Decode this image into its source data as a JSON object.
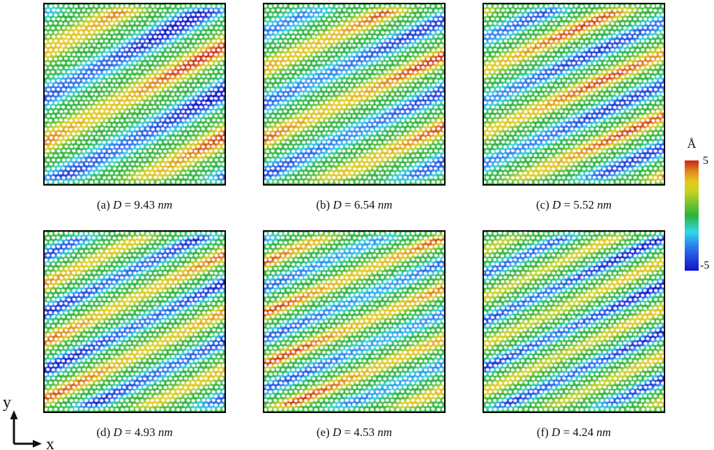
{
  "figure": {
    "colorbar": {
      "unit": "Å",
      "max_label": "5",
      "min_label": "-5",
      "stops": [
        {
          "v": -1.0,
          "c": "#1212c8"
        },
        {
          "v": -0.55,
          "c": "#2e7df0"
        },
        {
          "v": -0.3,
          "c": "#2fd8e8"
        },
        {
          "v": 0.0,
          "c": "#2cb43c"
        },
        {
          "v": 0.45,
          "c": "#c8d222"
        },
        {
          "v": 0.62,
          "c": "#e6c81e"
        },
        {
          "v": 0.8,
          "c": "#e08a1e"
        },
        {
          "v": 1.0,
          "c": "#cc2212"
        }
      ]
    },
    "axes_indicator": {
      "x": "x",
      "y": "y"
    },
    "panels": [
      {
        "label": "(a)",
        "symbol": "D",
        "eq": "=",
        "value": "9.43",
        "unit": "nm",
        "angle": 28,
        "period": 114,
        "phase": 0.27,
        "ampP": 5.0,
        "ampN": 5.0,
        "seed": 11
      },
      {
        "label": "(b)",
        "symbol": "D",
        "eq": "=",
        "value": "6.54",
        "unit": "nm",
        "angle": 25,
        "period": 92,
        "phase": 0.65,
        "ampP": 5.0,
        "ampN": 4.2,
        "seed": 23
      },
      {
        "label": "(c)",
        "symbol": "D",
        "eq": "=",
        "value": "5.52",
        "unit": "nm",
        "angle": 24,
        "period": 82,
        "phase": 0.8,
        "ampP": 4.8,
        "ampN": 4.2,
        "seed": 37
      },
      {
        "label": "(d)",
        "symbol": "D",
        "eq": "=",
        "value": "4.93",
        "unit": "nm",
        "angle": 26,
        "period": 74,
        "phase": 0.66,
        "ampP": 4.6,
        "ampN": 5.0,
        "seed": 41
      },
      {
        "label": "(e)",
        "symbol": "D",
        "eq": "=",
        "value": "4.53",
        "unit": "nm",
        "angle": 23,
        "period": 67,
        "phase": 0.35,
        "ampP": 5.0,
        "ampN": 3.6,
        "seed": 53
      },
      {
        "label": "(f)",
        "symbol": "D",
        "eq": "=",
        "value": "4.24",
        "unit": "nm",
        "angle": 25,
        "period": 61,
        "phase": 0.15,
        "ampP": 3.4,
        "ampN": 5.0,
        "seed": 67
      }
    ]
  },
  "chart_data": {
    "type": "heatmap",
    "panels": [
      {
        "label": "(a)",
        "D_nm": 9.43
      },
      {
        "label": "(b)",
        "D_nm": 6.54
      },
      {
        "label": "(c)",
        "D_nm": 5.52
      },
      {
        "label": "(d)",
        "D_nm": 4.93
      },
      {
        "label": "(e)",
        "D_nm": 4.53
      },
      {
        "label": "(f)",
        "D_nm": 4.24
      }
    ],
    "value_unit": "Å",
    "value_range": [
      -5,
      5
    ],
    "colorbar_ticks": [
      "5",
      "-5"
    ],
    "colormap": "jet",
    "legend_position": "right",
    "axis_labels": {
      "x": "x",
      "y": "y"
    },
    "pattern": "diagonal stripes of positive (red, +5 A) and negative (blue, -5 A) out-of-plane displacement on green (0 A) honeycomb lattice; stripe period shrinks as D decreases"
  }
}
